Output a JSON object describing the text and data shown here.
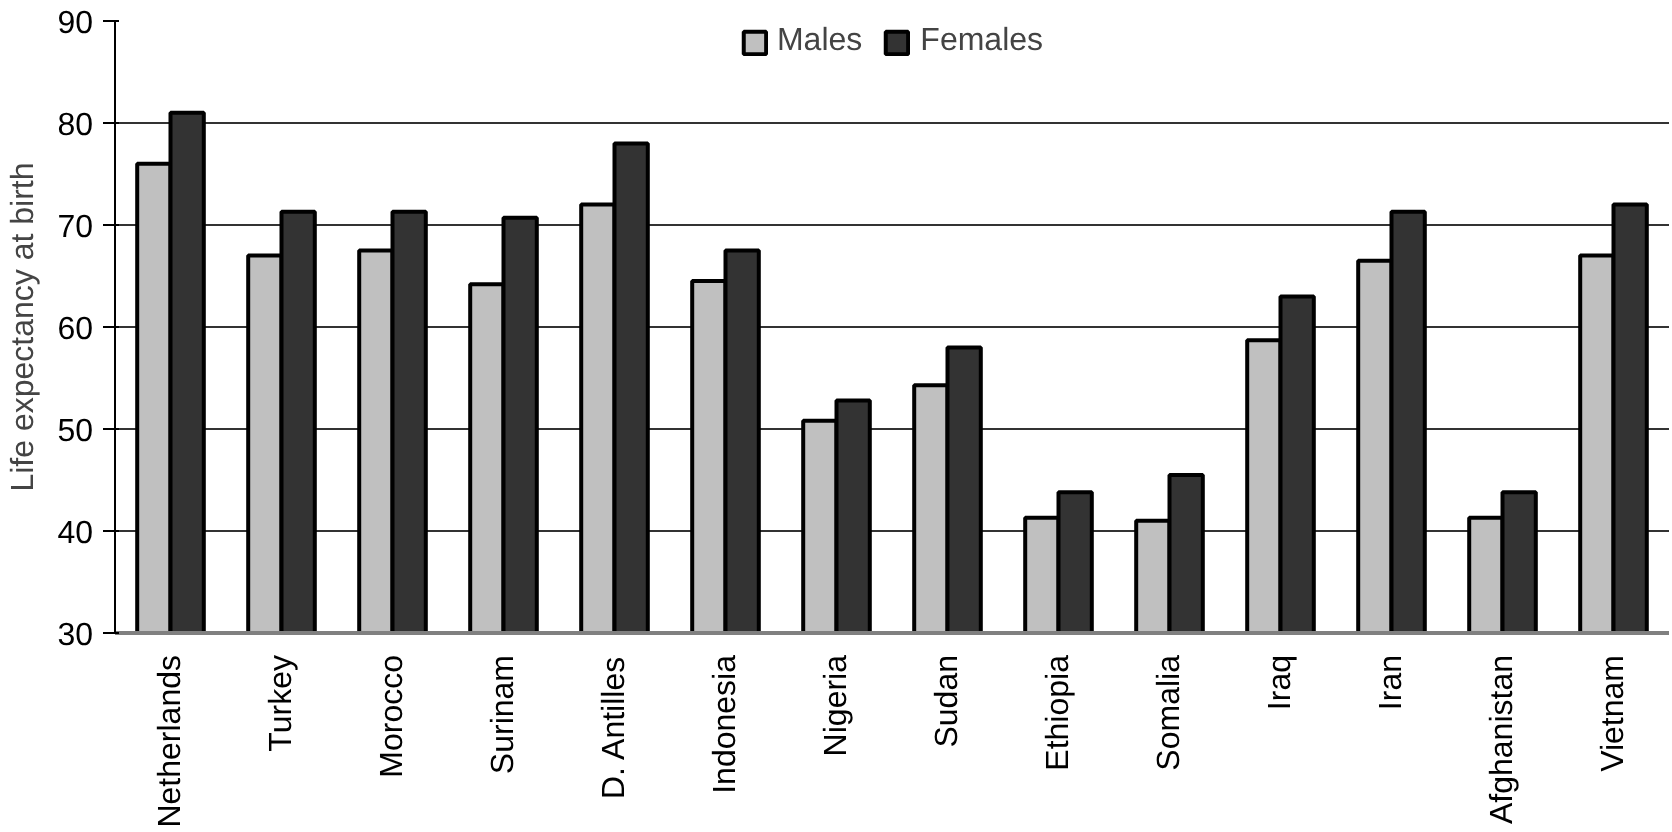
{
  "chart_data": {
    "type": "bar",
    "ylabel": "Life expectancy at birth",
    "categories": [
      "Netherlands",
      "Turkey",
      "Morocco",
      "Surinam",
      "D. Antilles",
      "Indonesia",
      "Nigeria",
      "Sudan",
      "Ethiopia",
      "Somalia",
      "Iraq",
      "Iran",
      "Afghanistan",
      "Vietnam"
    ],
    "series": [
      {
        "name": "Males",
        "color": "#c0c0c0",
        "values": [
          76,
          67,
          67.5,
          64.2,
          72,
          64.5,
          50.8,
          54.3,
          41.3,
          41,
          58.7,
          66.5,
          41.3,
          67
        ]
      },
      {
        "name": "Females",
        "color": "#333333",
        "values": [
          81,
          71.3,
          71.3,
          70.7,
          78,
          67.5,
          52.8,
          58,
          43.8,
          45.5,
          63,
          71.3,
          43.8,
          72
        ]
      }
    ],
    "ylim": [
      30,
      90
    ],
    "yticks": [
      30,
      40,
      50,
      60,
      70,
      80,
      90
    ],
    "grid": "y",
    "legend": "top"
  }
}
